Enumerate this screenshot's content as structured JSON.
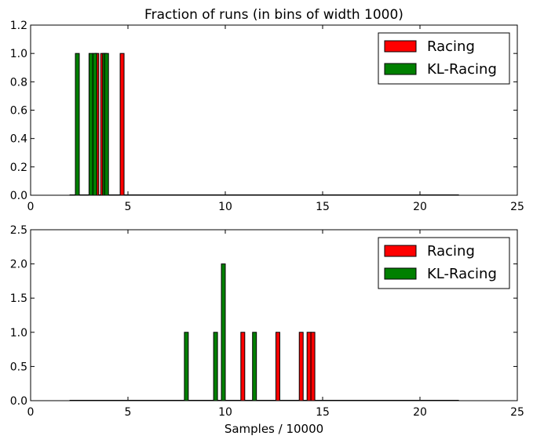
{
  "chart_data": [
    {
      "type": "bar",
      "title": "Fraction of runs (in bins of width 1000)",
      "xlabel": "",
      "ylabel": "",
      "xlim": [
        0,
        25
      ],
      "ylim": [
        0,
        1.2
      ],
      "xticks": [
        "0",
        "5",
        "10",
        "15",
        "20",
        "25"
      ],
      "yticks": [
        "0.0",
        "0.2",
        "0.4",
        "0.6",
        "0.8",
        "1.0",
        "1.2"
      ],
      "baseline_x_range": [
        2,
        22
      ],
      "bar_width": 0.2,
      "grid": false,
      "legend_position": "top-right",
      "series": [
        {
          "name": "Racing",
          "color": "#ff0000",
          "x": [
            3.4,
            3.7,
            4.7
          ],
          "values": [
            1,
            1,
            1
          ]
        },
        {
          "name": "KL-Racing",
          "color": "#008000",
          "x": [
            2.4,
            3.1,
            3.3,
            3.8,
            3.9
          ],
          "values": [
            1,
            1,
            1,
            1,
            1
          ]
        }
      ]
    },
    {
      "type": "bar",
      "title": "",
      "xlabel": "Samples / 10000",
      "ylabel": "",
      "xlim": [
        0,
        25
      ],
      "ylim": [
        0,
        2.5
      ],
      "xticks": [
        "0",
        "5",
        "10",
        "15",
        "20",
        "25"
      ],
      "yticks": [
        "0.0",
        "0.5",
        "1.0",
        "1.5",
        "2.0",
        "2.5"
      ],
      "baseline_x_range": [
        2,
        22
      ],
      "bar_width": 0.2,
      "grid": false,
      "legend_position": "top-right",
      "series": [
        {
          "name": "Racing",
          "color": "#ff0000",
          "x": [
            10.9,
            12.7,
            13.9,
            14.3,
            14.5
          ],
          "values": [
            1,
            1,
            1,
            1,
            1
          ]
        },
        {
          "name": "KL-Racing",
          "color": "#008000",
          "x": [
            8.0,
            9.5,
            9.9,
            11.5
          ],
          "values": [
            1,
            1,
            2,
            1
          ]
        }
      ]
    }
  ]
}
